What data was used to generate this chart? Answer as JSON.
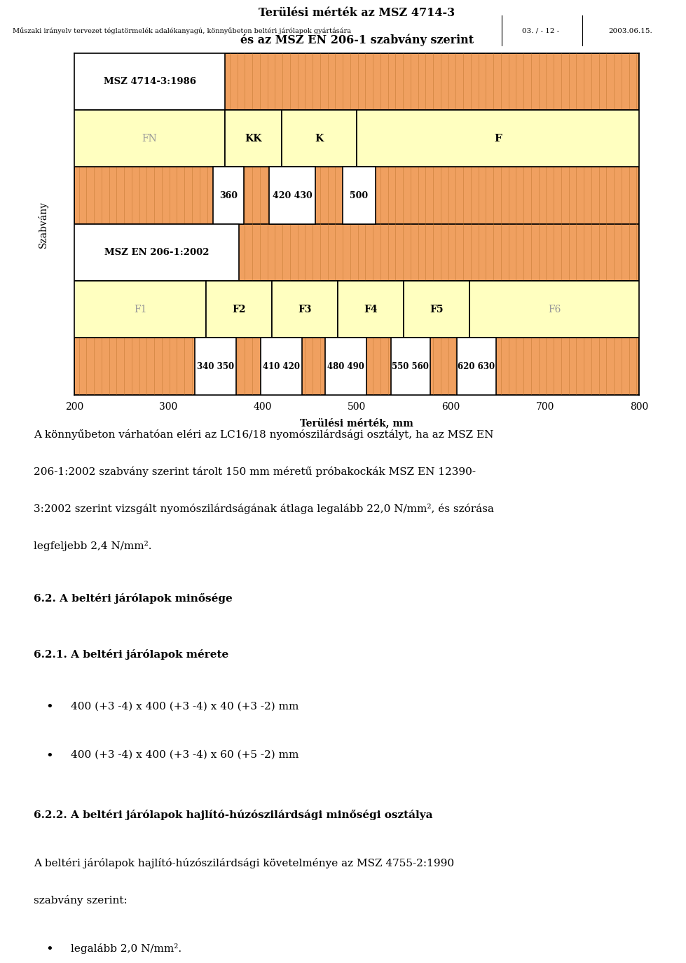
{
  "header_text": "Műszaki irányelv tervezet téglatörmelék adalékanyagú, könnyűbeton beltéri járólapok gyártására",
  "header_page": "03. / - 12 -",
  "header_date": "2003.06.15.",
  "chart_title_line1": "Terülési mérték az MSZ 4714-3",
  "chart_title_line2": "és az MSZ EN 206-1 szabvány szerint",
  "szabvany_label": "Szabvány",
  "xlabel": "Terülési mérték, mm",
  "xticks": [
    200,
    300,
    400,
    500,
    600,
    700,
    800
  ],
  "xmin": 200,
  "xmax": 800,
  "orange_color": "#F0A060",
  "yellow_color": "#FFFFC0",
  "white_color": "#FFFFFF",
  "row1_label": "MSZ 4714-3:1986",
  "row2_label_fn": "FN",
  "row2_label_kk": "KK",
  "row2_label_k": "K",
  "row2_label_f": "F",
  "row4_label": "MSZ EN 206-1:2002",
  "row5_label_f1": "F1",
  "row5_label_f2": "F2",
  "row5_label_f3": "F3",
  "row5_label_f4": "F4",
  "row5_label_f5": "F5",
  "row5_label_f6": "F6",
  "section62": "6.2. A beltéri járólapok minősége",
  "section621": "6.2.1. A beltéri járólapok mérete",
  "bullet1": "400 (+3 -4) x 400 (+3 -4) x 40 (+3 -2) mm",
  "bullet2": "400 (+3 -4) x 400 (+3 -4) x 60 (+5 -2) mm",
  "section622": "6.2.2. A beltéri járólapok hajlító-húzószilárdsági minőségi osztálya",
  "body_text2a": "A beltéri járólapok hajlító-húzószilárdsági követelménye az MSZ 4755-2:1990",
  "body_text2b": "szabvány szerint:",
  "bullet3": "legalább 2,0 N/mm",
  "bg_color": "#FFFFFF"
}
